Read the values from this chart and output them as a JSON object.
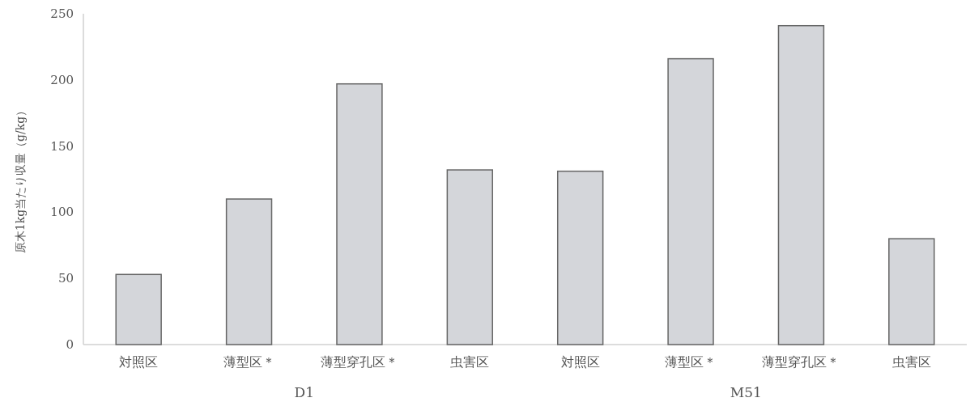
{
  "chart_data": {
    "type": "bar",
    "ylabel": "原木1kg当たり収量（g/kg）",
    "categories": [
      "対照区",
      "薄型区＊",
      "薄型穿孔区＊",
      "虫害区",
      "対照区",
      "薄型区＊",
      "薄型穿孔区＊",
      "虫害区"
    ],
    "values": [
      53,
      110,
      197,
      132,
      131,
      216,
      241,
      80
    ],
    "color": "#d4d6da",
    "ylim": [
      0,
      250
    ],
    "yticks": [
      0,
      50,
      100,
      150,
      200,
      250
    ],
    "annotations": [
      "D1",
      "M51"
    ],
    "grid": false
  }
}
